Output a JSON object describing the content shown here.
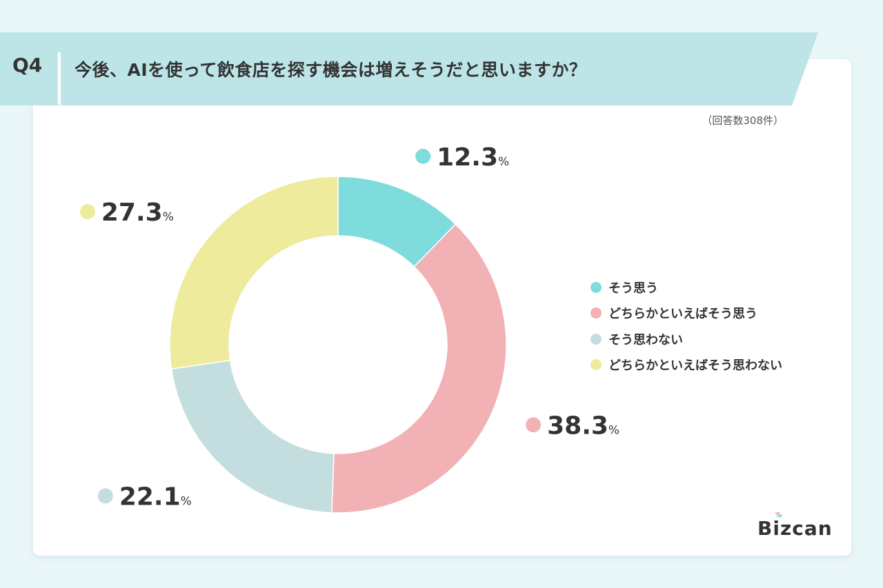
{
  "question": {
    "number": "Q4",
    "text": "今後、AIを使って飲食店を探す機会は増えそうだと思いますか？"
  },
  "response_count": "（回答数308件）",
  "brand": {
    "logo_text": "Bizcan"
  },
  "colors": {
    "background": "#eaf7f9",
    "banner": "#bde5e8",
    "text": "#333333"
  },
  "chart_data": {
    "type": "pie",
    "donut": true,
    "unit": "%",
    "legend_position": "right",
    "categories": [
      "そう思う",
      "どちらかといえばそう思う",
      "そう思わない",
      "どちらかといえばそう思わない"
    ],
    "values": [
      12.3,
      38.3,
      22.1,
      27.3
    ],
    "colors": [
      "#7fdcdc",
      "#f2b1b4",
      "#c4dddf",
      "#eeeb9c"
    ],
    "labels": [
      "12.3",
      "38.3",
      "22.1",
      "27.3"
    ]
  }
}
